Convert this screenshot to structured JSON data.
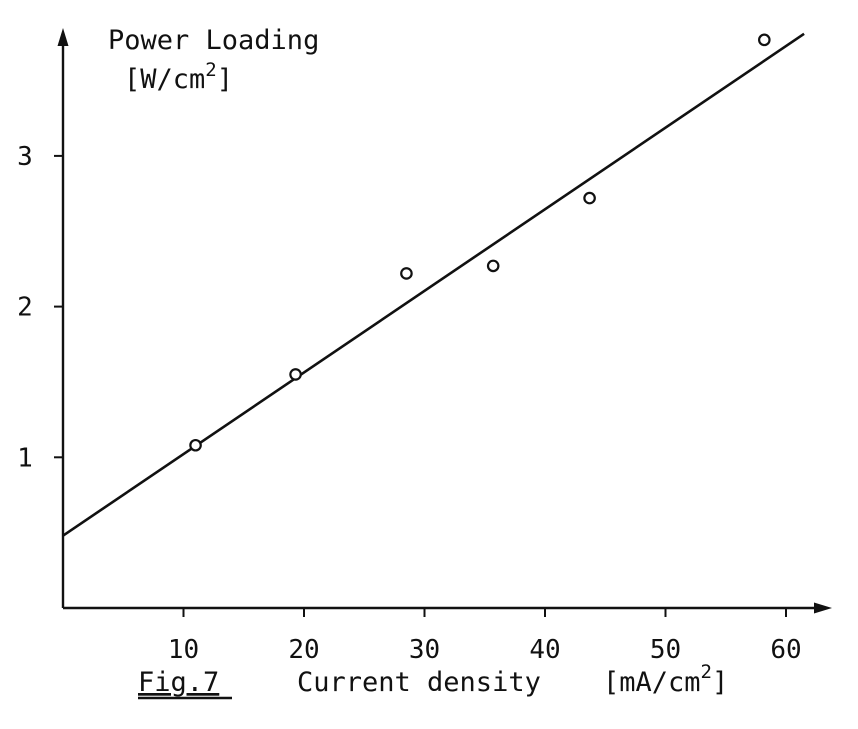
{
  "chart_data": {
    "type": "scatter",
    "figure_label": "Fig.7",
    "xlabel": "Current density",
    "xunit": "[mA/cm",
    "xunit_exp": "2",
    "xunit_close": "]",
    "ylabel": "Power Loading",
    "yunit": "[W/cm",
    "yunit_exp": "2",
    "yunit_close": "]",
    "xlim": [
      0,
      65
    ],
    "ylim": [
      0,
      4
    ],
    "xticks": [
      10,
      20,
      30,
      40,
      50,
      60
    ],
    "xtick_labels": [
      "10",
      "20",
      "30",
      "40",
      "50",
      "60"
    ],
    "yticks": [
      1,
      2,
      3
    ],
    "ytick_labels": [
      "1",
      "2",
      "3"
    ],
    "grid": false,
    "series": [
      {
        "kind": "points",
        "marker": "open-circle",
        "x": [
          11.0,
          19.3,
          28.5,
          35.7,
          43.7,
          58.2
        ],
        "y": [
          1.08,
          1.55,
          2.22,
          2.27,
          2.72,
          3.77
        ]
      },
      {
        "kind": "line",
        "x": [
          0,
          61.5
        ],
        "y": [
          0.48,
          3.81
        ]
      }
    ]
  }
}
